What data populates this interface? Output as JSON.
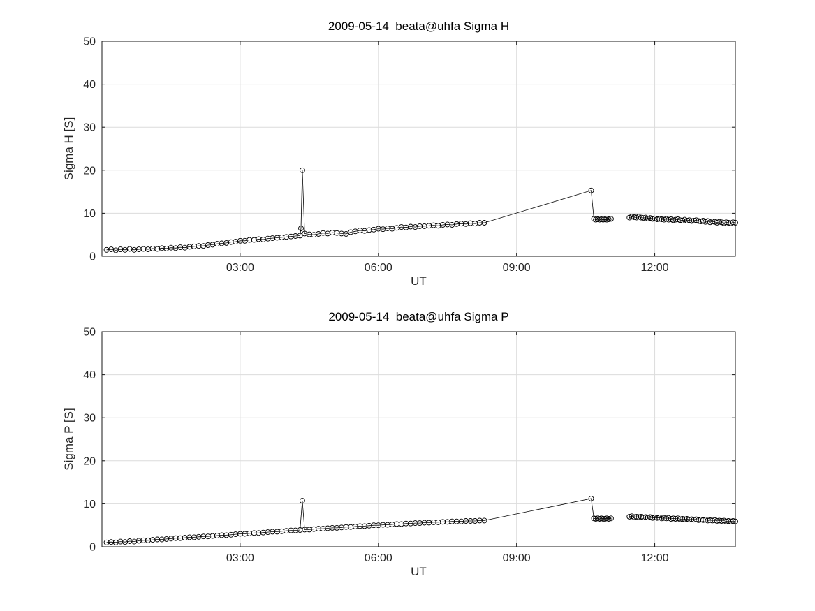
{
  "figure": {
    "background": "#ffffff",
    "axis_color": "#1a1a1a",
    "grid_color": "#dcdcdc",
    "data_color": "#000000"
  },
  "chart_data": [
    {
      "type": "line",
      "title": "2009-05-14  beata@uhfa Sigma H",
      "xlabel": "UT",
      "ylabel": "Sigma H [S]",
      "xlim": [
        0,
        13.75
      ],
      "ylim": [
        0,
        50
      ],
      "grid": true,
      "marker": "circle",
      "legend": null,
      "xticks": [
        {
          "value": 3,
          "label": "03:00"
        },
        {
          "value": 6,
          "label": "06:00"
        },
        {
          "value": 9,
          "label": "09:00"
        },
        {
          "value": 12,
          "label": "12:00"
        }
      ],
      "yticks": [
        {
          "value": 0,
          "label": "0"
        },
        {
          "value": 10,
          "label": "10"
        },
        {
          "value": 20,
          "label": "20"
        },
        {
          "value": 30,
          "label": "30"
        },
        {
          "value": 40,
          "label": "40"
        },
        {
          "value": 50,
          "label": "50"
        }
      ],
      "segments": [
        [
          [
            0.1,
            1.5
          ],
          [
            0.2,
            1.6
          ],
          [
            0.3,
            1.4
          ],
          [
            0.4,
            1.6
          ],
          [
            0.5,
            1.5
          ],
          [
            0.6,
            1.7
          ],
          [
            0.7,
            1.5
          ],
          [
            0.8,
            1.6
          ],
          [
            0.9,
            1.7
          ],
          [
            1.0,
            1.6
          ],
          [
            1.1,
            1.8
          ],
          [
            1.2,
            1.7
          ],
          [
            1.3,
            1.9
          ],
          [
            1.4,
            1.8
          ],
          [
            1.5,
            2.0
          ],
          [
            1.6,
            1.9
          ],
          [
            1.7,
            2.1
          ],
          [
            1.8,
            2.0
          ],
          [
            1.9,
            2.2
          ],
          [
            2.0,
            2.3
          ],
          [
            2.1,
            2.4
          ],
          [
            2.2,
            2.4
          ],
          [
            2.3,
            2.6
          ],
          [
            2.4,
            2.7
          ],
          [
            2.5,
            2.9
          ],
          [
            2.6,
            3.0
          ],
          [
            2.7,
            3.1
          ],
          [
            2.8,
            3.3
          ],
          [
            2.9,
            3.4
          ],
          [
            3.0,
            3.6
          ],
          [
            3.1,
            3.6
          ],
          [
            3.2,
            3.8
          ],
          [
            3.3,
            3.8
          ],
          [
            3.4,
            4.0
          ],
          [
            3.5,
            3.9
          ],
          [
            3.6,
            4.1
          ],
          [
            3.7,
            4.2
          ],
          [
            3.8,
            4.3
          ],
          [
            3.9,
            4.4
          ],
          [
            4.0,
            4.5
          ],
          [
            4.1,
            4.6
          ],
          [
            4.2,
            4.7
          ],
          [
            4.3,
            4.8
          ],
          [
            4.32,
            6.5
          ],
          [
            4.35,
            20.0
          ],
          [
            4.4,
            5.3
          ],
          [
            4.5,
            5.1
          ],
          [
            4.6,
            5.0
          ],
          [
            4.7,
            5.2
          ],
          [
            4.8,
            5.4
          ],
          [
            4.9,
            5.3
          ],
          [
            5.0,
            5.5
          ],
          [
            5.1,
            5.4
          ],
          [
            5.2,
            5.3
          ],
          [
            5.3,
            5.2
          ],
          [
            5.4,
            5.6
          ],
          [
            5.5,
            5.8
          ],
          [
            5.6,
            6.0
          ],
          [
            5.7,
            5.9
          ],
          [
            5.8,
            6.1
          ],
          [
            5.9,
            6.2
          ],
          [
            6.0,
            6.4
          ],
          [
            6.1,
            6.3
          ],
          [
            6.2,
            6.5
          ],
          [
            6.3,
            6.4
          ],
          [
            6.4,
            6.6
          ],
          [
            6.5,
            6.8
          ],
          [
            6.6,
            6.7
          ],
          [
            6.7,
            6.9
          ],
          [
            6.8,
            6.8
          ],
          [
            6.9,
            7.0
          ],
          [
            7.0,
            7.0
          ],
          [
            7.1,
            7.1
          ],
          [
            7.2,
            7.2
          ],
          [
            7.3,
            7.1
          ],
          [
            7.4,
            7.3
          ],
          [
            7.5,
            7.4
          ],
          [
            7.6,
            7.3
          ],
          [
            7.7,
            7.5
          ],
          [
            7.8,
            7.6
          ],
          [
            7.9,
            7.5
          ],
          [
            8.0,
            7.7
          ],
          [
            8.1,
            7.6
          ],
          [
            8.2,
            7.8
          ],
          [
            8.3,
            7.8
          ],
          [
            10.62,
            15.3
          ],
          [
            10.68,
            8.7
          ],
          [
            10.72,
            8.5
          ],
          [
            10.76,
            8.6
          ],
          [
            10.8,
            8.5
          ],
          [
            10.84,
            8.6
          ],
          [
            10.88,
            8.5
          ],
          [
            10.92,
            8.6
          ],
          [
            10.96,
            8.5
          ],
          [
            11.0,
            8.6
          ],
          [
            11.05,
            8.7
          ]
        ],
        [
          [
            11.45,
            9.0
          ],
          [
            11.5,
            9.2
          ],
          [
            11.55,
            9.1
          ],
          [
            11.6,
            9.0
          ],
          [
            11.65,
            9.2
          ],
          [
            11.7,
            9.0
          ],
          [
            11.75,
            8.9
          ],
          [
            11.8,
            9.0
          ],
          [
            11.85,
            8.8
          ],
          [
            11.9,
            8.9
          ],
          [
            11.95,
            8.7
          ],
          [
            12.0,
            8.8
          ],
          [
            12.05,
            8.6
          ],
          [
            12.1,
            8.7
          ],
          [
            12.15,
            8.6
          ],
          [
            12.2,
            8.5
          ],
          [
            12.25,
            8.7
          ],
          [
            12.3,
            8.5
          ],
          [
            12.35,
            8.6
          ],
          [
            12.4,
            8.4
          ],
          [
            12.45,
            8.5
          ],
          [
            12.5,
            8.6
          ],
          [
            12.55,
            8.4
          ],
          [
            12.6,
            8.3
          ],
          [
            12.65,
            8.5
          ],
          [
            12.7,
            8.3
          ],
          [
            12.75,
            8.4
          ],
          [
            12.8,
            8.2
          ],
          [
            12.85,
            8.3
          ],
          [
            12.9,
            8.4
          ],
          [
            12.95,
            8.2
          ],
          [
            13.0,
            8.1
          ],
          [
            13.05,
            8.3
          ],
          [
            13.1,
            8.0
          ],
          [
            13.15,
            8.2
          ],
          [
            13.2,
            7.9
          ],
          [
            13.25,
            8.1
          ],
          [
            13.3,
            8.0
          ],
          [
            13.35,
            7.8
          ],
          [
            13.4,
            8.0
          ],
          [
            13.45,
            7.9
          ],
          [
            13.5,
            7.7
          ],
          [
            13.55,
            7.9
          ],
          [
            13.6,
            7.8
          ],
          [
            13.65,
            7.7
          ],
          [
            13.7,
            7.9
          ],
          [
            13.75,
            7.8
          ]
        ]
      ]
    },
    {
      "type": "line",
      "title": "2009-05-14  beata@uhfa Sigma P",
      "xlabel": "UT",
      "ylabel": "Sigma P [S]",
      "xlim": [
        0,
        13.75
      ],
      "ylim": [
        0,
        50
      ],
      "grid": true,
      "marker": "circle",
      "legend": null,
      "xticks": [
        {
          "value": 3,
          "label": "03:00"
        },
        {
          "value": 6,
          "label": "06:00"
        },
        {
          "value": 9,
          "label": "09:00"
        },
        {
          "value": 12,
          "label": "12:00"
        }
      ],
      "yticks": [
        {
          "value": 0,
          "label": "0"
        },
        {
          "value": 10,
          "label": "10"
        },
        {
          "value": 20,
          "label": "20"
        },
        {
          "value": 30,
          "label": "30"
        },
        {
          "value": 40,
          "label": "40"
        },
        {
          "value": 50,
          "label": "50"
        }
      ],
      "segments": [
        [
          [
            0.1,
            1.0
          ],
          [
            0.2,
            1.1
          ],
          [
            0.3,
            1.0
          ],
          [
            0.4,
            1.2
          ],
          [
            0.5,
            1.1
          ],
          [
            0.6,
            1.3
          ],
          [
            0.7,
            1.2
          ],
          [
            0.8,
            1.4
          ],
          [
            0.9,
            1.5
          ],
          [
            1.0,
            1.5
          ],
          [
            1.1,
            1.6
          ],
          [
            1.2,
            1.7
          ],
          [
            1.3,
            1.7
          ],
          [
            1.4,
            1.8
          ],
          [
            1.5,
            1.9
          ],
          [
            1.6,
            2.0
          ],
          [
            1.7,
            2.0
          ],
          [
            1.8,
            2.1
          ],
          [
            1.9,
            2.2
          ],
          [
            2.0,
            2.2
          ],
          [
            2.1,
            2.3
          ],
          [
            2.2,
            2.4
          ],
          [
            2.3,
            2.4
          ],
          [
            2.4,
            2.5
          ],
          [
            2.5,
            2.6
          ],
          [
            2.6,
            2.7
          ],
          [
            2.7,
            2.7
          ],
          [
            2.8,
            2.8
          ],
          [
            2.9,
            2.9
          ],
          [
            3.0,
            3.0
          ],
          [
            3.1,
            3.0
          ],
          [
            3.2,
            3.1
          ],
          [
            3.3,
            3.2
          ],
          [
            3.4,
            3.2
          ],
          [
            3.5,
            3.3
          ],
          [
            3.6,
            3.4
          ],
          [
            3.7,
            3.5
          ],
          [
            3.8,
            3.5
          ],
          [
            3.9,
            3.6
          ],
          [
            4.0,
            3.7
          ],
          [
            4.1,
            3.8
          ],
          [
            4.2,
            3.8
          ],
          [
            4.3,
            3.9
          ],
          [
            4.35,
            10.7
          ],
          [
            4.4,
            4.0
          ],
          [
            4.5,
            4.0
          ],
          [
            4.6,
            4.1
          ],
          [
            4.7,
            4.2
          ],
          [
            4.8,
            4.2
          ],
          [
            4.9,
            4.3
          ],
          [
            5.0,
            4.4
          ],
          [
            5.1,
            4.4
          ],
          [
            5.2,
            4.5
          ],
          [
            5.3,
            4.6
          ],
          [
            5.4,
            4.6
          ],
          [
            5.5,
            4.7
          ],
          [
            5.6,
            4.8
          ],
          [
            5.7,
            4.8
          ],
          [
            5.8,
            4.9
          ],
          [
            5.9,
            5.0
          ],
          [
            6.0,
            5.0
          ],
          [
            6.1,
            5.1
          ],
          [
            6.2,
            5.1
          ],
          [
            6.3,
            5.2
          ],
          [
            6.4,
            5.3
          ],
          [
            6.5,
            5.3
          ],
          [
            6.6,
            5.4
          ],
          [
            6.7,
            5.4
          ],
          [
            6.8,
            5.5
          ],
          [
            6.9,
            5.5
          ],
          [
            7.0,
            5.6
          ],
          [
            7.1,
            5.6
          ],
          [
            7.2,
            5.7
          ],
          [
            7.3,
            5.7
          ],
          [
            7.4,
            5.8
          ],
          [
            7.5,
            5.8
          ],
          [
            7.6,
            5.9
          ],
          [
            7.7,
            5.9
          ],
          [
            7.8,
            5.9
          ],
          [
            7.9,
            6.0
          ],
          [
            8.0,
            6.0
          ],
          [
            8.1,
            6.0
          ],
          [
            8.2,
            6.1
          ],
          [
            8.3,
            6.1
          ],
          [
            10.62,
            11.2
          ],
          [
            10.68,
            6.6
          ],
          [
            10.72,
            6.5
          ],
          [
            10.76,
            6.6
          ],
          [
            10.8,
            6.5
          ],
          [
            10.84,
            6.6
          ],
          [
            10.88,
            6.5
          ],
          [
            10.92,
            6.5
          ],
          [
            10.96,
            6.6
          ],
          [
            11.0,
            6.5
          ],
          [
            11.05,
            6.6
          ]
        ],
        [
          [
            11.45,
            7.0
          ],
          [
            11.5,
            7.1
          ],
          [
            11.55,
            6.9
          ],
          [
            11.6,
            7.0
          ],
          [
            11.65,
            6.9
          ],
          [
            11.7,
            7.0
          ],
          [
            11.75,
            6.8
          ],
          [
            11.8,
            6.9
          ],
          [
            11.85,
            6.8
          ],
          [
            11.9,
            6.9
          ],
          [
            11.95,
            6.7
          ],
          [
            12.0,
            6.8
          ],
          [
            12.05,
            6.7
          ],
          [
            12.1,
            6.8
          ],
          [
            12.15,
            6.6
          ],
          [
            12.2,
            6.7
          ],
          [
            12.25,
            6.6
          ],
          [
            12.3,
            6.7
          ],
          [
            12.35,
            6.5
          ],
          [
            12.4,
            6.6
          ],
          [
            12.45,
            6.5
          ],
          [
            12.5,
            6.6
          ],
          [
            12.55,
            6.4
          ],
          [
            12.6,
            6.5
          ],
          [
            12.65,
            6.4
          ],
          [
            12.7,
            6.5
          ],
          [
            12.75,
            6.3
          ],
          [
            12.8,
            6.4
          ],
          [
            12.85,
            6.3
          ],
          [
            12.9,
            6.4
          ],
          [
            12.95,
            6.2
          ],
          [
            13.0,
            6.3
          ],
          [
            13.05,
            6.2
          ],
          [
            13.1,
            6.3
          ],
          [
            13.15,
            6.1
          ],
          [
            13.2,
            6.2
          ],
          [
            13.25,
            6.1
          ],
          [
            13.3,
            6.2
          ],
          [
            13.35,
            6.0
          ],
          [
            13.4,
            6.1
          ],
          [
            13.45,
            6.0
          ],
          [
            13.5,
            6.1
          ],
          [
            13.55,
            5.9
          ],
          [
            13.6,
            6.0
          ],
          [
            13.65,
            5.9
          ],
          [
            13.7,
            6.0
          ],
          [
            13.75,
            5.9
          ]
        ]
      ]
    }
  ]
}
